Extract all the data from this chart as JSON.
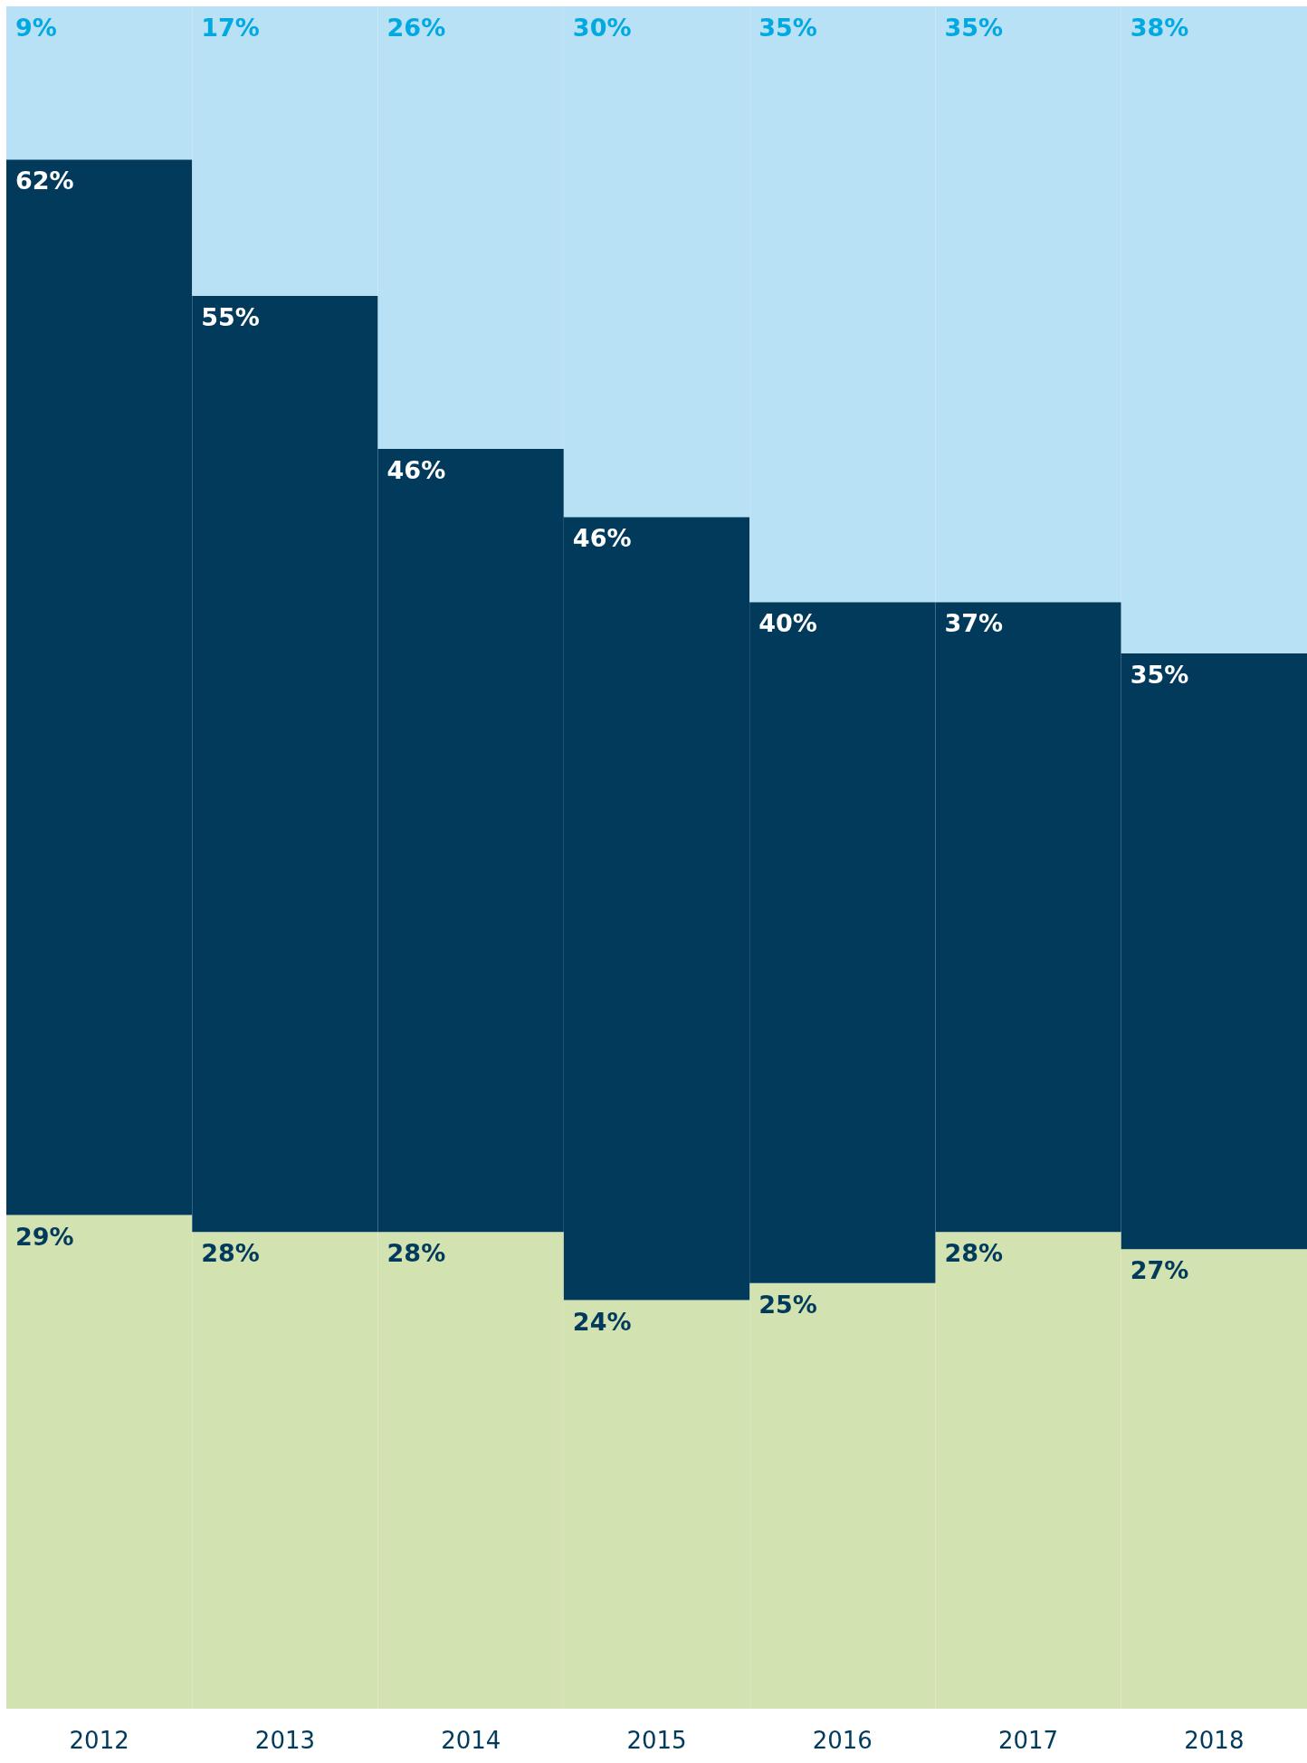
{
  "chart_data": {
    "type": "bar",
    "stacked": true,
    "categories": [
      "2012",
      "2013",
      "2014",
      "2015",
      "2016",
      "2017",
      "2018"
    ],
    "tick_labels": "x",
    "series": [
      {
        "color": "#d3e2b1",
        "values": [
          29,
          28,
          28,
          24,
          25,
          28,
          27
        ],
        "value_labels": [
          "29%",
          "28%",
          "28%",
          "24%",
          "25%",
          "28%",
          "27%"
        ]
      },
      {
        "color": "#023a5c",
        "values": [
          62,
          55,
          46,
          46,
          40,
          37,
          35
        ],
        "value_labels": [
          "62%",
          "55%",
          "46%",
          "46%",
          "40%",
          "37%",
          "35%"
        ]
      },
      {
        "color": "#b8e1f5",
        "values": [
          9,
          17,
          26,
          30,
          35,
          35,
          38
        ],
        "value_labels": [
          "9%",
          "17%",
          "26%",
          "30%",
          "35%",
          "35%",
          "38%"
        ]
      }
    ]
  }
}
